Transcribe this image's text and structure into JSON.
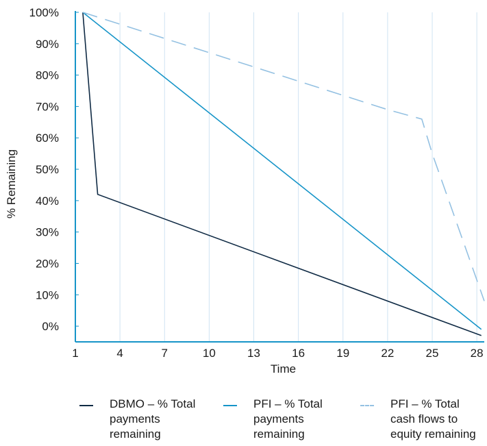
{
  "chart_data": {
    "type": "line",
    "xlabel": "Time",
    "ylabel": "% Remaining",
    "xlim": [
      1,
      28.5
    ],
    "ylim": [
      -5,
      100
    ],
    "x_ticks": [
      1,
      4,
      7,
      10,
      13,
      16,
      19,
      22,
      25,
      28
    ],
    "y_ticks": [
      0,
      10,
      20,
      30,
      40,
      50,
      60,
      70,
      80,
      90,
      100
    ],
    "y_tick_labels": [
      "0%",
      "10%",
      "20%",
      "30%",
      "40%",
      "50%",
      "60%",
      "70%",
      "80%",
      "90%",
      "100%"
    ],
    "grid": "vertical",
    "legend_position": "bottom",
    "series": [
      {
        "name": "DBMO – % Total payments remaining",
        "color": "#0f2a44",
        "style": "solid",
        "points": [
          [
            1.5,
            100
          ],
          [
            2.5,
            42
          ],
          [
            28.3,
            -3
          ]
        ]
      },
      {
        "name": "PFI – % Total payments remaining",
        "color": "#1594c8",
        "style": "solid",
        "points": [
          [
            1.5,
            100
          ],
          [
            28.3,
            -1
          ]
        ]
      },
      {
        "name": "PFI – % Total cash flows to equity remaining",
        "color": "#94c1e2",
        "style": "dashed",
        "points": [
          [
            1.5,
            100
          ],
          [
            22,
            69
          ],
          [
            24.3,
            66
          ],
          [
            25,
            55
          ],
          [
            28.5,
            8
          ]
        ]
      }
    ]
  },
  "legend": {
    "items": [
      {
        "label": "DBMO – % Total\npayments\nremaining",
        "color": "#0f2a44",
        "style": "solid"
      },
      {
        "label": "PFI – % Total\npayments\nremaining",
        "color": "#1594c8",
        "style": "solid"
      },
      {
        "label": "PFI – % Total\ncash flows to\nequity remaining",
        "color": "#94c1e2",
        "style": "dashed"
      }
    ]
  },
  "colors": {
    "axis": "#1594c8",
    "grid": "#cfe3f2"
  }
}
